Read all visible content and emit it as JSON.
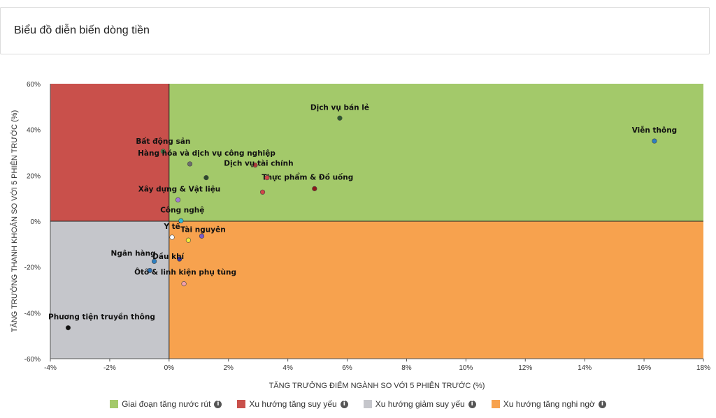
{
  "header": {
    "title": "Biểu đồ diễn biến dòng tiền"
  },
  "chart_data": {
    "type": "scatter",
    "xlabel": "TĂNG TRƯỞNG ĐIỂM NGÀNH SO VỚI 5 PHIÊN TRƯỚC (%)",
    "ylabel": "TĂNG TRƯỞNG THANH KHOẢN SO VỚI 5 PHIÊN TRƯỚC (%)",
    "xlim": [
      -4,
      18
    ],
    "ylim": [
      -60,
      60
    ],
    "x_ticks": [
      -4,
      -2,
      0,
      2,
      4,
      6,
      8,
      10,
      12,
      14,
      16,
      18
    ],
    "y_ticks": [
      -60,
      -40,
      -20,
      0,
      20,
      40,
      60
    ],
    "x_tick_labels": [
      "-4%",
      "-2%",
      "0%",
      "2%",
      "4%",
      "6%",
      "8%",
      "10%",
      "12%",
      "14%",
      "16%",
      "18%"
    ],
    "y_tick_labels": [
      "-60%",
      "-40%",
      "-20%",
      "0%",
      "20%",
      "40%",
      "60%"
    ],
    "quadrants": [
      {
        "name": "Giai đoạn tăng nước rút",
        "color": "#a3c96a"
      },
      {
        "name": "Xu hướng tăng suy yếu",
        "color": "#c9504b"
      },
      {
        "name": "Xu hướng giảm suy yếu",
        "color": "#c5c6cb"
      },
      {
        "name": "Xu hướng tăng nghi ngờ",
        "color": "#f7a24e"
      }
    ],
    "points": [
      {
        "label": "Dịch vụ bán lẻ",
        "x": 5.75,
        "y": 45,
        "color": "#2d5a2d"
      },
      {
        "label": "Viễn thông",
        "x": 16.35,
        "y": 35,
        "color": "#2e7fc0"
      },
      {
        "label": "Bất động sản",
        "x": -0.2,
        "y": 30.5,
        "color": "#4a8a4a"
      },
      {
        "label": "Hàng hóa và dịch vụ công nghiệp",
        "x": 0.7,
        "y": 25,
        "color": "#6e6e6e"
      },
      {
        "label": "",
        "x": 1.25,
        "y": 19,
        "color": "#2d4a2d"
      },
      {
        "label": "Dịch vụ tài chính",
        "x": 2.9,
        "y": 24.5,
        "color": "#b03a3a"
      },
      {
        "label": "Thực phẩm & Đồ uống",
        "x": 4.9,
        "y": 14.2,
        "color": "#8b1a1a"
      },
      {
        "label": "",
        "x": 3.3,
        "y": 19,
        "color": "#d04848"
      },
      {
        "label": "",
        "x": 3.15,
        "y": 12.7,
        "color": "#d04848"
      },
      {
        "label": "Xây dựng & Vật liệu",
        "x": 0.3,
        "y": 9.3,
        "color": "#a27ad4"
      },
      {
        "label": "Công nghệ",
        "x": 0.4,
        "y": 0.2,
        "color": "#2fb8d8"
      },
      {
        "label": "Y tế",
        "x": 0.1,
        "y": -7,
        "color": "#ffffff"
      },
      {
        "label": "Tài nguyên",
        "x": 0.65,
        "y": -8.3,
        "color": "#f2ea3a"
      },
      {
        "label": "",
        "x": 1.1,
        "y": -6.5,
        "color": "#7a5ac8"
      },
      {
        "label": "Ngân hàng",
        "x": -0.5,
        "y": -17.5,
        "color": "#2e7fc0"
      },
      {
        "label": "Dầu khí",
        "x": 0.35,
        "y": -16.5,
        "color": "#3d3aa0"
      },
      {
        "label": "",
        "x": -0.65,
        "y": -21.5,
        "color": "#2e6fb0"
      },
      {
        "label": "Ôtô & linh kiện phụ tùng",
        "x": 0.5,
        "y": -27.3,
        "color": "#f4a0a8"
      },
      {
        "label": "Phương tiện truyền thông",
        "x": -3.4,
        "y": -46.5,
        "color": "#111111"
      }
    ]
  },
  "legend": {
    "items": [
      {
        "label": "Giai đoạn tăng nước rút",
        "color": "#a3c96a",
        "icon": "info-icon"
      },
      {
        "label": "Xu hướng tăng suy yếu",
        "color": "#c9504b",
        "icon": "info-icon"
      },
      {
        "label": "Xu hướng giảm suy yếu",
        "color": "#c5c6cb",
        "icon": "info-icon"
      },
      {
        "label": "Xu hướng tăng nghi ngờ",
        "color": "#f7a24e",
        "icon": "info-icon"
      }
    ]
  }
}
